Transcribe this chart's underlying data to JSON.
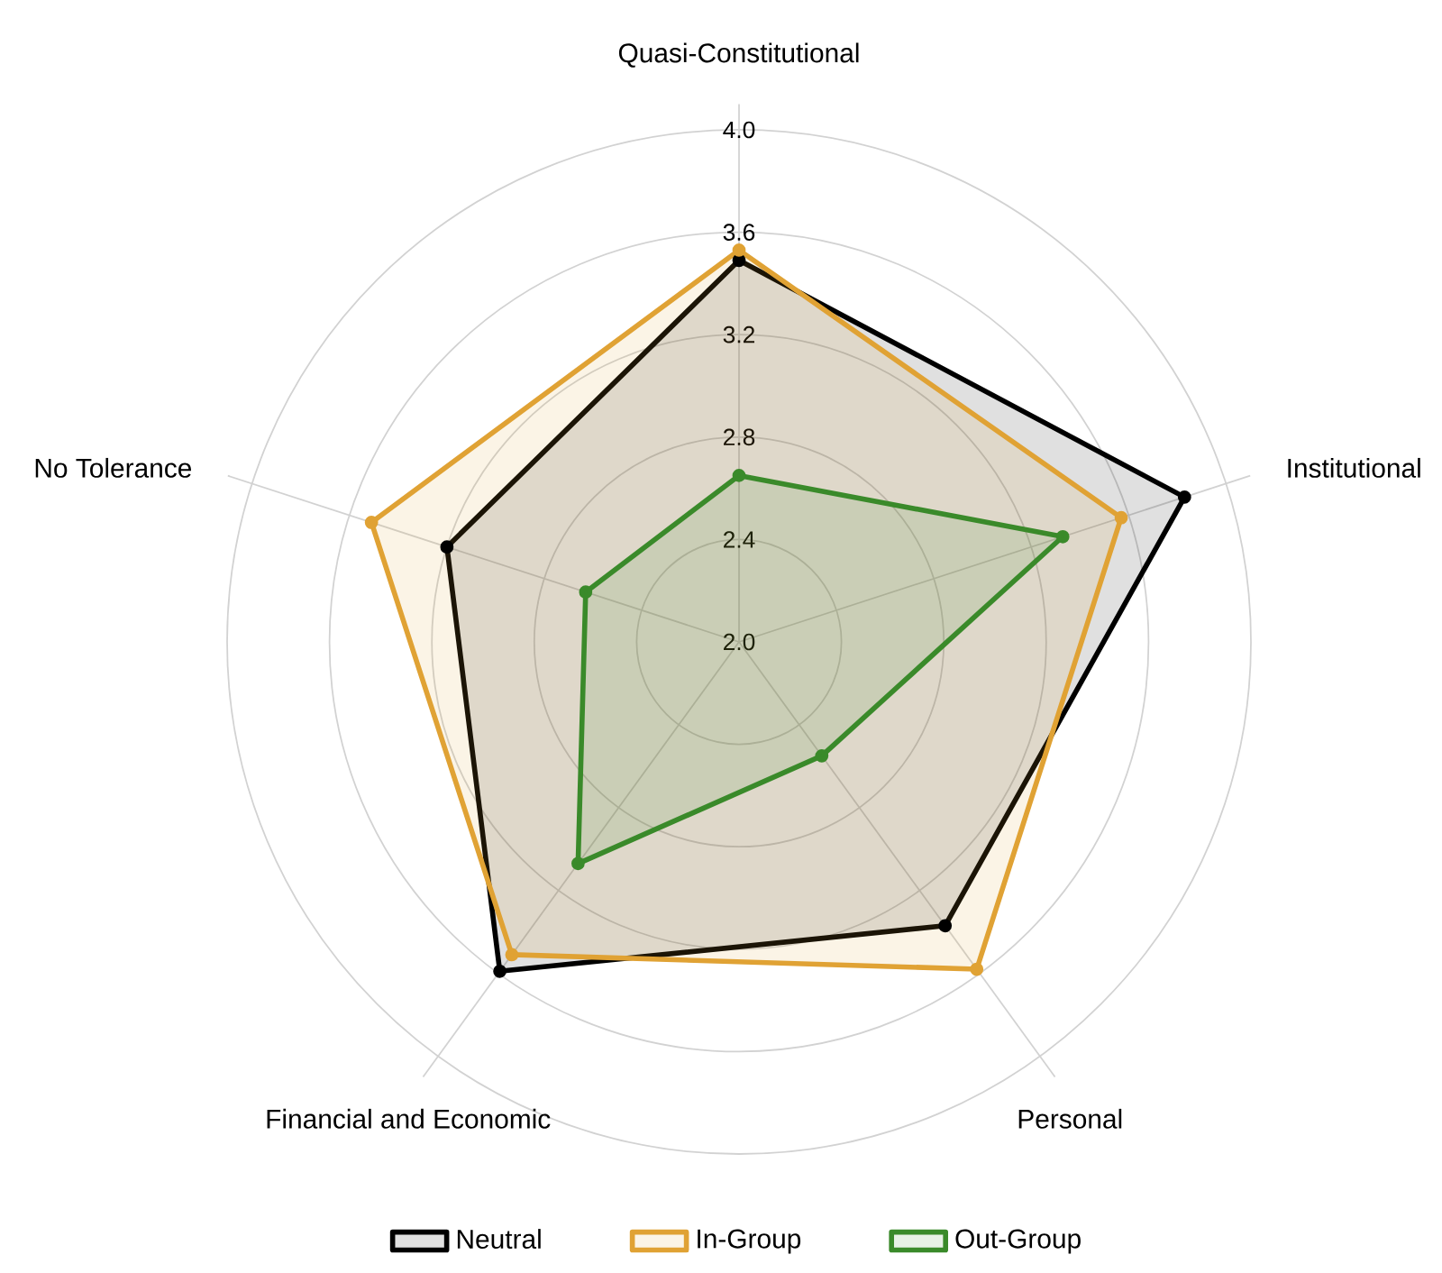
{
  "chart_data": {
    "type": "radar",
    "categories": [
      "Quasi-Constitutional",
      "Institutional",
      "Personal",
      "Financial and Economic",
      "No Tolerance"
    ],
    "series": [
      {
        "name": "Neutral",
        "color": "#000000",
        "values": [
          3.49,
          3.83,
          3.37,
          3.59,
          3.2
        ]
      },
      {
        "name": "In-Group",
        "color": "#e0a234",
        "values": [
          3.53,
          3.57,
          3.58,
          3.51,
          3.51
        ]
      },
      {
        "name": "Out-Group",
        "color": "#3a8a2a",
        "values": [
          2.65,
          3.33,
          2.55,
          3.07,
          2.63
        ]
      }
    ],
    "ylim": [
      2,
      4
    ],
    "yticks": [
      {
        "value": 2,
        "label": "2.0"
      },
      {
        "value": 2.4,
        "label": "2.4"
      },
      {
        "value": 2.8,
        "label": "2.8"
      },
      {
        "value": 3.2,
        "label": "3.2"
      },
      {
        "value": 3.6,
        "label": "3.6"
      },
      {
        "value": 4,
        "label": "4.0"
      }
    ],
    "grid": true,
    "legend": "bottom",
    "marker": "circle"
  }
}
